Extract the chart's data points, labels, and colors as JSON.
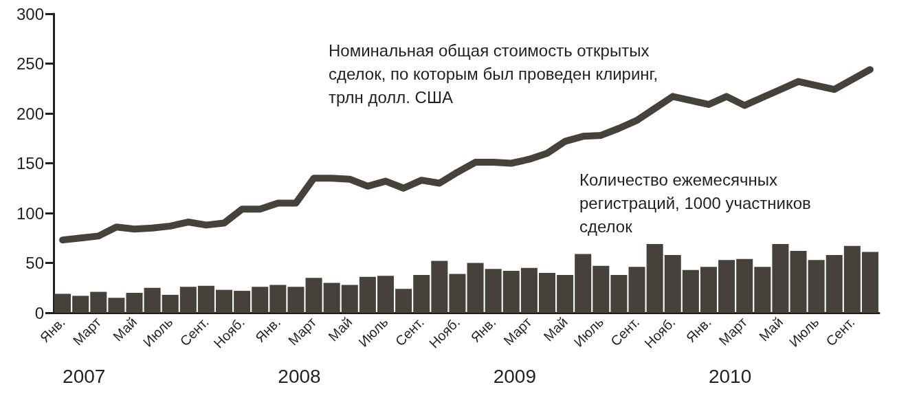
{
  "chart_data": {
    "type": "bar",
    "categories": [
      "Янв.",
      null,
      "Март",
      null,
      "Май",
      null,
      "Июль",
      null,
      "Сент.",
      null,
      "Нояб.",
      null,
      "Янв.",
      null,
      "Март",
      null,
      "Май",
      null,
      "Июль",
      null,
      "Сент.",
      null,
      "Нояб.",
      null,
      "Янв.",
      null,
      "Март",
      null,
      "Май",
      null,
      "Июль",
      null,
      "Сент.",
      null,
      "Нояб.",
      null,
      "Янв.",
      null,
      "Март",
      null,
      "Май",
      null,
      "Июль",
      null,
      "Сент.",
      null
    ],
    "series": [
      {
        "name": "Количество ежемесячных регистраций, 1000 участников сделок",
        "color": "#46413b",
        "values": [
          19,
          17,
          21,
          15,
          20,
          25,
          18,
          26,
          27,
          23,
          22,
          26,
          28,
          26,
          35,
          30,
          28,
          36,
          37,
          24,
          38,
          52,
          39,
          50,
          44,
          42,
          45,
          40,
          38,
          59,
          47,
          38,
          46,
          69,
          58,
          43,
          46,
          53,
          54,
          46,
          69,
          62,
          53,
          58,
          67,
          61
        ]
      },
      {
        "name": "Номинальная общая стоимость открытых сделок, по которым был проведен клиринг, трлн долл. США",
        "type": "line",
        "color": "#46413b",
        "values": [
          73,
          75,
          77,
          86,
          84,
          85,
          87,
          91,
          88,
          90,
          104,
          104,
          110,
          110,
          135,
          135,
          134,
          127,
          132,
          125,
          133,
          130,
          141,
          151,
          151,
          150,
          154,
          160,
          172,
          177,
          178,
          185,
          193,
          205,
          217,
          213,
          209,
          217,
          208,
          216,
          224,
          232,
          228,
          224,
          234,
          244
        ]
      }
    ],
    "annotations": [
      "2007",
      "2008",
      "2009",
      "2010"
    ],
    "ylim": [
      0,
      300
    ],
    "yticks": [
      0,
      50,
      100,
      150,
      200,
      250,
      300
    ]
  }
}
